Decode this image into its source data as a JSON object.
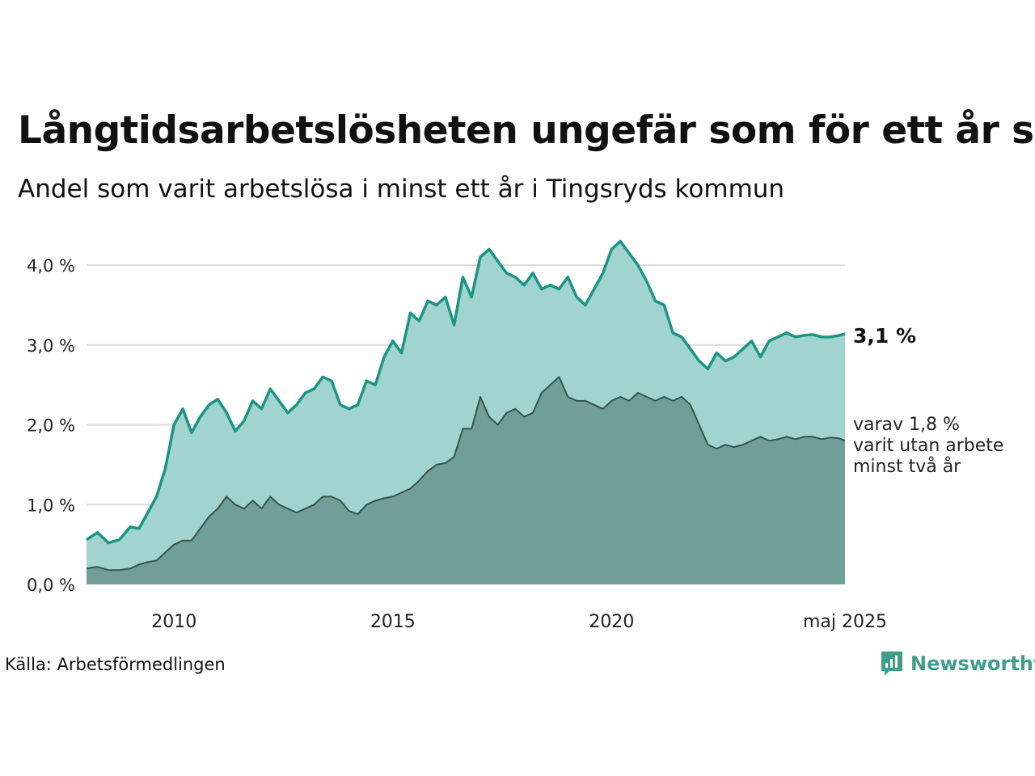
{
  "header": {
    "title": "Långtidsarbetslösheten ungefär som för ett år sen",
    "subtitle": "Andel som varit arbetslösa i minst ett år i Tingsryds kommun"
  },
  "footer": {
    "source": "Källa: Arbetsförmedlingen",
    "brand": "Newsworthy"
  },
  "chart_data": {
    "type": "area",
    "y_tick_labels": [
      "0,0 %",
      "1,0 %",
      "2,0 %",
      "3,0 %",
      "4,0 %"
    ],
    "y_ticks": [
      0,
      1,
      2,
      3,
      4
    ],
    "x_tick_labels": [
      "2010",
      "2015",
      "2020",
      "maj 2025"
    ],
    "x_ticks": [
      2010.0,
      2015.0,
      2020.0,
      2025.333
    ],
    "xlim": [
      2008.0,
      2025.333
    ],
    "ylim": [
      0,
      4.4
    ],
    "grid": true,
    "colors": {
      "total": "#1a9583",
      "total_fill": "#a2d4cf",
      "two_year": "#35554e",
      "two_year_fill": "#709f98",
      "grid": "#dddddd",
      "brand": "#3d9e8c"
    },
    "end_labels": {
      "total": "3,1 %",
      "two_year": [
        "varav 1,8 %",
        "varit utan arbete",
        "minst två år"
      ]
    },
    "series": [
      {
        "key": "total",
        "x": [
          2008.0,
          2008.25,
          2008.5,
          2008.75,
          2009.0,
          2009.2,
          2009.4,
          2009.6,
          2009.8,
          2010.0,
          2010.2,
          2010.4,
          2010.6,
          2010.8,
          2011.0,
          2011.2,
          2011.4,
          2011.6,
          2011.8,
          2012.0,
          2012.2,
          2012.4,
          2012.6,
          2012.8,
          2013.0,
          2013.2,
          2013.4,
          2013.6,
          2013.8,
          2014.0,
          2014.2,
          2014.4,
          2014.6,
          2014.8,
          2015.0,
          2015.2,
          2015.4,
          2015.6,
          2015.8,
          2016.0,
          2016.2,
          2016.4,
          2016.6,
          2016.8,
          2017.0,
          2017.2,
          2017.4,
          2017.6,
          2017.8,
          2018.0,
          2018.2,
          2018.4,
          2018.6,
          2018.8,
          2019.0,
          2019.2,
          2019.4,
          2019.6,
          2019.8,
          2020.0,
          2020.2,
          2020.4,
          2020.6,
          2020.8,
          2021.0,
          2021.2,
          2021.4,
          2021.6,
          2021.8,
          2022.0,
          2022.2,
          2022.4,
          2022.6,
          2022.8,
          2023.0,
          2023.2,
          2023.4,
          2023.6,
          2023.8,
          2024.0,
          2024.2,
          2024.4,
          2024.6,
          2024.8,
          2025.0,
          2025.2,
          2025.333
        ],
        "y": [
          0.56,
          0.65,
          0.52,
          0.56,
          0.72,
          0.7,
          0.9,
          1.1,
          1.45,
          2.0,
          2.2,
          1.9,
          2.1,
          2.25,
          2.32,
          2.15,
          1.92,
          2.05,
          2.3,
          2.2,
          2.45,
          2.3,
          2.15,
          2.25,
          2.4,
          2.45,
          2.6,
          2.55,
          2.25,
          2.2,
          2.25,
          2.55,
          2.5,
          2.85,
          3.05,
          2.9,
          3.4,
          3.3,
          3.55,
          3.5,
          3.6,
          3.25,
          3.85,
          3.6,
          4.1,
          4.2,
          4.05,
          3.9,
          3.85,
          3.75,
          3.9,
          3.7,
          3.75,
          3.7,
          3.85,
          3.6,
          3.5,
          3.7,
          3.9,
          4.2,
          4.3,
          4.15,
          4.0,
          3.8,
          3.55,
          3.5,
          3.15,
          3.1,
          2.95,
          2.8,
          2.7,
          2.9,
          2.8,
          2.85,
          2.95,
          3.05,
          2.85,
          3.05,
          3.1,
          3.15,
          3.1,
          3.12,
          3.13,
          3.1,
          3.1,
          3.12,
          3.14
        ]
      },
      {
        "key": "two_year",
        "x": [
          2008.0,
          2008.25,
          2008.5,
          2008.75,
          2009.0,
          2009.2,
          2009.4,
          2009.6,
          2009.8,
          2010.0,
          2010.2,
          2010.4,
          2010.6,
          2010.8,
          2011.0,
          2011.2,
          2011.4,
          2011.6,
          2011.8,
          2012.0,
          2012.2,
          2012.4,
          2012.6,
          2012.8,
          2013.0,
          2013.2,
          2013.4,
          2013.6,
          2013.8,
          2014.0,
          2014.2,
          2014.4,
          2014.6,
          2014.8,
          2015.0,
          2015.2,
          2015.4,
          2015.6,
          2015.8,
          2016.0,
          2016.2,
          2016.4,
          2016.6,
          2016.8,
          2017.0,
          2017.2,
          2017.4,
          2017.6,
          2017.8,
          2018.0,
          2018.2,
          2018.4,
          2018.6,
          2018.8,
          2019.0,
          2019.2,
          2019.4,
          2019.6,
          2019.8,
          2020.0,
          2020.2,
          2020.4,
          2020.6,
          2020.8,
          2021.0,
          2021.2,
          2021.4,
          2021.6,
          2021.8,
          2022.0,
          2022.2,
          2022.4,
          2022.6,
          2022.8,
          2023.0,
          2023.2,
          2023.4,
          2023.6,
          2023.8,
          2024.0,
          2024.2,
          2024.4,
          2024.6,
          2024.8,
          2025.0,
          2025.2,
          2025.333
        ],
        "y": [
          0.2,
          0.22,
          0.18,
          0.18,
          0.2,
          0.25,
          0.28,
          0.3,
          0.4,
          0.5,
          0.55,
          0.55,
          0.7,
          0.85,
          0.95,
          1.1,
          1.0,
          0.95,
          1.05,
          0.95,
          1.1,
          1.0,
          0.95,
          0.9,
          0.95,
          1.0,
          1.1,
          1.1,
          1.05,
          0.92,
          0.88,
          1.0,
          1.05,
          1.08,
          1.1,
          1.15,
          1.2,
          1.3,
          1.42,
          1.5,
          1.52,
          1.6,
          1.95,
          1.95,
          2.35,
          2.1,
          2.0,
          2.15,
          2.2,
          2.1,
          2.15,
          2.4,
          2.5,
          2.6,
          2.35,
          2.3,
          2.3,
          2.25,
          2.2,
          2.3,
          2.35,
          2.3,
          2.4,
          2.35,
          2.3,
          2.35,
          2.3,
          2.35,
          2.25,
          2.0,
          1.75,
          1.7,
          1.75,
          1.72,
          1.75,
          1.8,
          1.85,
          1.8,
          1.82,
          1.85,
          1.82,
          1.85,
          1.85,
          1.82,
          1.84,
          1.83,
          1.8
        ]
      }
    ]
  }
}
